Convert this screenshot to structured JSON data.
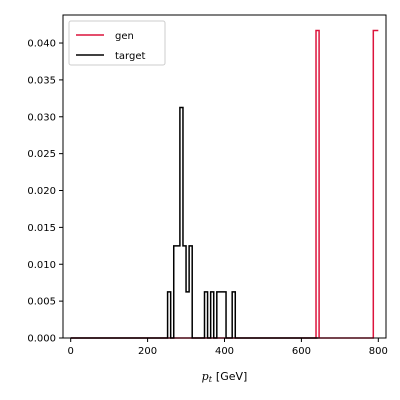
{
  "chart_data": {
    "type": "histogram",
    "xlabel": "p_t [GeV]",
    "xlabel_main": "p",
    "xlabel_sub": "t",
    "xlabel_unit": "[GeV]",
    "xlim": [
      -20,
      820
    ],
    "ylim": [
      0,
      0.0438
    ],
    "xticks": [
      0,
      200,
      400,
      600,
      800
    ],
    "yticks": [
      0.0,
      0.005,
      0.01,
      0.015,
      0.02,
      0.025,
      0.03,
      0.035,
      0.04
    ],
    "ytick_labels": [
      "0.000",
      "0.005",
      "0.010",
      "0.015",
      "0.020",
      "0.025",
      "0.030",
      "0.035",
      "0.040"
    ],
    "legend_position": "upper-left",
    "grid": false,
    "series": [
      {
        "name": "gen",
        "color": "#dc143c",
        "edges": [
          0,
          638,
          646,
          787,
          795,
          800
        ],
        "values": [
          0,
          0.0417,
          0,
          0.0417,
          0.0417
        ]
      },
      {
        "name": "target",
        "color": "#000000",
        "edges": [
          0,
          252,
          260,
          268,
          276,
          284,
          292,
          300,
          308,
          316,
          324,
          348,
          356,
          364,
          372,
          380,
          396,
          404,
          412,
          420,
          428,
          436,
          644
        ],
        "values": [
          0,
          0.00625,
          0,
          0.0125,
          0.0125,
          0.03125,
          0.0125,
          0.00625,
          0.0125,
          0,
          0,
          0.00625,
          0,
          0.00625,
          0,
          0.00625,
          0.00625,
          0,
          0,
          0.00625,
          0,
          0
        ]
      }
    ]
  }
}
